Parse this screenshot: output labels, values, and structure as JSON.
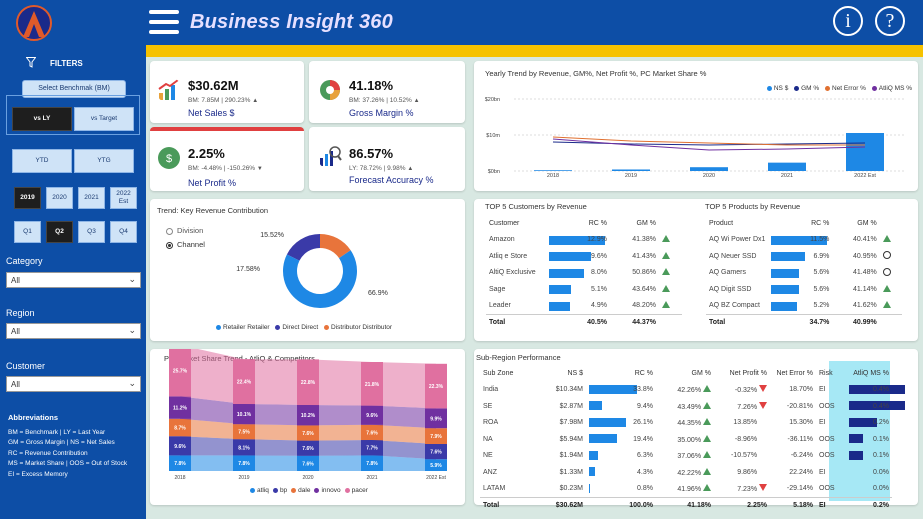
{
  "header": {
    "title": "Business Insight 360"
  },
  "colors": {
    "primary": "#0d4ea6",
    "accent": "#f6c200",
    "bar": "#1e88e5",
    "up": "#4a9a5a",
    "down": "#e04040"
  },
  "sidebar": {
    "filters_label": "FILTERS",
    "benchmark_button": "Select Benchmak (BM)",
    "vs_ly": "vs LY",
    "vs_target": "vs Target",
    "ytd": "YTD",
    "ytg": "YTG",
    "years": [
      "2019",
      "2020",
      "2021",
      "2022 Est"
    ],
    "quarters": [
      "Q1",
      "Q2",
      "Q3",
      "Q4"
    ],
    "category": {
      "label": "Category",
      "value": "All"
    },
    "region": {
      "label": "Region",
      "value": "All"
    },
    "customer": {
      "label": "Customer",
      "value": "All"
    },
    "abbr_title": "Abbreviations",
    "abbr": [
      "BM = Benchmark | LY = Last Year",
      "GM = Gross Margin | NS = Net Sales",
      "RC = Revenue Contribution",
      "MS = Market Share | OOS = Out of Stock",
      "EI = Excess Memory"
    ]
  },
  "kpis": [
    {
      "value": "$30.62M",
      "sub": "BM: 7.85M | 290.23%",
      "label": "Net Sales $",
      "trend": "up",
      "icon": "growth-chart-icon"
    },
    {
      "value": "41.18%",
      "sub": "BM: 37.26% | 10.52%",
      "label": "Gross Margin %",
      "trend": "up",
      "icon": "pie-chart-icon"
    },
    {
      "value": "2.25%",
      "sub": "BM: -4.48% | -150.26%",
      "label": "Net Profit %",
      "trend": "down",
      "icon": "money-hand-icon"
    },
    {
      "value": "86.57%",
      "sub": "LY: 78.72% | 9.98%",
      "label": "Forecast Accuracy %",
      "trend": "up",
      "icon": "forecast-icon"
    }
  ],
  "yearly": {
    "title": "Yearly Trend by Revenue, GM%, Net Profit %, PC Market Share %",
    "legend": [
      "NS $",
      "GM %",
      "Net Error %",
      "AtliQ MS %"
    ],
    "yticks": [
      "$20bn",
      "$10m",
      "$0bn"
    ],
    "chart_data": {
      "type": "bar",
      "categories": [
        "2018",
        "2019",
        "2020",
        "2021",
        "2022 Est"
      ],
      "values": [
        0.2,
        0.4,
        1.0,
        2.2,
        10.0
      ],
      "colors": [
        "#1e88e5",
        "#1a2a8a",
        "#e07030",
        "#7030a0"
      ]
    }
  },
  "contribution": {
    "title": "Trend: Key Revenue Contribution",
    "radio": [
      "Division",
      "Channel"
    ],
    "chart_data": {
      "type": "pie",
      "labels": [
        "Retailer Retailer",
        "Direct Direct",
        "Distributor Distributor"
      ],
      "values": [
        66.9,
        17.58,
        15.52
      ],
      "display": [
        "66.9%",
        "17.58%",
        "15.52%"
      ],
      "colors": [
        "#1e88e5",
        "#3a3aa8",
        "#e8743b"
      ]
    }
  },
  "customers": {
    "title": "TOP 5 Customers by Revenue",
    "headers": [
      "Customer",
      "RC %",
      "GM %"
    ],
    "rows": [
      {
        "name": "Amazon",
        "rc": "12.9%",
        "rcv": 12.9,
        "gm": "41.38%",
        "t": "up"
      },
      {
        "name": "Atliq e Store",
        "rc": "9.6%",
        "rcv": 9.6,
        "gm": "41.43%",
        "t": "up"
      },
      {
        "name": "AltiQ Exclusive",
        "rc": "8.0%",
        "rcv": 8.0,
        "gm": "50.86%",
        "t": "up"
      },
      {
        "name": "Sage",
        "rc": "5.1%",
        "rcv": 5.1,
        "gm": "43.64%",
        "t": "up"
      },
      {
        "name": "Leader",
        "rc": "4.9%",
        "rcv": 4.9,
        "gm": "48.20%",
        "t": "up"
      }
    ],
    "total": {
      "name": "Total",
      "rc": "40.5%",
      "gm": "44.37%"
    }
  },
  "products": {
    "title": "TOP 5 Products by Revenue",
    "headers": [
      "Product",
      "RC %",
      "GM %"
    ],
    "rows": [
      {
        "name": "AQ Wi Power Dx1",
        "rc": "11.5%",
        "rcv": 11.5,
        "gm": "40.41%",
        "t": "up"
      },
      {
        "name": "AQ Neuer SSD",
        "rc": "6.9%",
        "rcv": 6.9,
        "gm": "40.95%",
        "t": "neutral"
      },
      {
        "name": "AQ Gamers",
        "rc": "5.6%",
        "rcv": 5.6,
        "gm": "41.48%",
        "t": "neutral"
      },
      {
        "name": "AQ Digit SSD",
        "rc": "5.6%",
        "rcv": 5.6,
        "gm": "41.14%",
        "t": "up"
      },
      {
        "name": "AQ BZ Compact",
        "rc": "5.2%",
        "rcv": 5.2,
        "gm": "41.62%",
        "t": "up"
      }
    ],
    "total": {
      "name": "Total",
      "rc": "34.7%",
      "gm": "40.99%"
    }
  },
  "market": {
    "title": "PC Market Share Trend - AtliQ & Competitors",
    "legend": [
      "atliq",
      "bp",
      "dale",
      "innovo",
      "pacer"
    ],
    "chart_data": {
      "type": "area",
      "x": [
        "2018",
        "2019",
        "2020",
        "2021",
        "2022 Est"
      ],
      "series": [
        {
          "name": "atliq",
          "values": [
            7.8,
            7.8,
            7.6,
            7.8,
            5.9
          ],
          "color": "#1e88e5"
        },
        {
          "name": "bp",
          "values": [
            9.6,
            8.1,
            7.6,
            7.7,
            7.6
          ],
          "color": "#3a3aa8"
        },
        {
          "name": "dale",
          "values": [
            8.7,
            7.5,
            7.6,
            7.6,
            7.9
          ],
          "color": "#e8743b"
        },
        {
          "name": "innovo",
          "values": [
            11.2,
            10.1,
            10.2,
            9.6,
            9.9
          ],
          "color": "#7030a0"
        },
        {
          "name": "pacer",
          "values": [
            25.7,
            22.4,
            22.8,
            21.8,
            22.3
          ],
          "color": "#e070a0"
        }
      ]
    }
  },
  "subregion": {
    "title": "Sub-Region Performance",
    "headers": [
      "Sub Zone",
      "NS $",
      "RC %",
      "GM %",
      "Net Profit %",
      "Net Error %",
      "Risk",
      "AtliQ MS %"
    ],
    "rows": [
      {
        "zone": "India",
        "ns": "$10.34M",
        "rc": "33.8%",
        "rcv": 33.8,
        "gm": "42.26%",
        "gt": "up",
        "np": "-0.32%",
        "nt": "down",
        "ne": "18.70%",
        "risk": "EI",
        "ms": "0.4%",
        "msv": 0.4
      },
      {
        "zone": "SE",
        "ns": "$2.87M",
        "rc": "9.4%",
        "rcv": 9.4,
        "gm": "43.49%",
        "gt": "up",
        "np": "7.26%",
        "nt": "down",
        "ne": "-20.81%",
        "risk": "OOS",
        "ms": "0.4%",
        "msv": 0.4
      },
      {
        "zone": "ROA",
        "ns": "$7.98M",
        "rc": "26.1%",
        "rcv": 26.1,
        "gm": "44.35%",
        "gt": "up",
        "np": "13.85%",
        "nt": "",
        "ne": "15.30%",
        "risk": "EI",
        "ms": "0.2%",
        "msv": 0.2
      },
      {
        "zone": "NA",
        "ns": "$5.94M",
        "rc": "19.4%",
        "rcv": 19.4,
        "gm": "35.00%",
        "gt": "up",
        "np": "-8.96%",
        "nt": "",
        "ne": "-36.11%",
        "risk": "OOS",
        "ms": "0.1%",
        "msv": 0.1
      },
      {
        "zone": "NE",
        "ns": "$1.94M",
        "rc": "6.3%",
        "rcv": 6.3,
        "gm": "37.06%",
        "gt": "up",
        "np": "-10.57%",
        "nt": "",
        "ne": "-6.24%",
        "risk": "OOS",
        "ms": "0.1%",
        "msv": 0.1
      },
      {
        "zone": "ANZ",
        "ns": "$1.33M",
        "rc": "4.3%",
        "rcv": 4.3,
        "gm": "42.22%",
        "gt": "up",
        "np": "9.86%",
        "nt": "",
        "ne": "22.24%",
        "risk": "EI",
        "ms": "0.0%",
        "msv": 0.0
      },
      {
        "zone": "LATAM",
        "ns": "$0.23M",
        "rc": "0.8%",
        "rcv": 0.8,
        "gm": "41.96%",
        "gt": "up",
        "np": "7.23%",
        "nt": "down",
        "ne": "-29.14%",
        "risk": "OOS",
        "ms": "0.0%",
        "msv": 0.0
      }
    ],
    "total": {
      "zone": "Total",
      "ns": "$30.62M",
      "rc": "100.0%",
      "gm": "41.18%",
      "np": "2.25%",
      "ne": "5.18%",
      "risk": "EI",
      "ms": "0.2%"
    }
  }
}
